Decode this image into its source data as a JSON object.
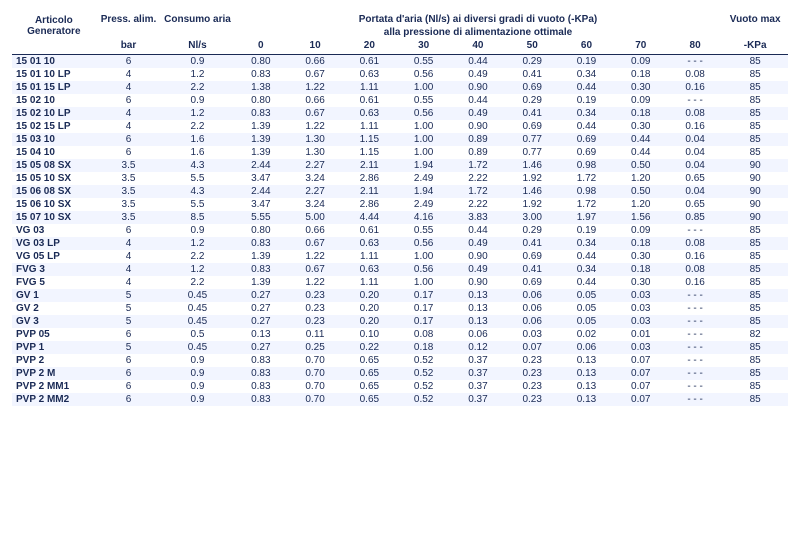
{
  "styling": {
    "text_color": "#1a2a55",
    "row_alt_bg": "#f2f5ff",
    "row_bg": "#ffffff",
    "header_border": "#1a2a55",
    "font_family": "Arial",
    "base_fontsize_pt": 7.5
  },
  "headers": {
    "articolo_l1": "Articolo",
    "articolo_l2": "Generatore",
    "press_l1": "Press. alim.",
    "press_unit": "bar",
    "consumo_l1": "Consumo aria",
    "consumo_unit": "Nl/s",
    "portata_l1": "Portata d'aria (Nl/s) ai diversi gradi di vuoto (-KPa)",
    "portata_l2": "alla pressione di alimentazione ottimale",
    "p0": "0",
    "p10": "10",
    "p20": "20",
    "p30": "30",
    "p40": "40",
    "p50": "50",
    "p60": "60",
    "p70": "70",
    "p80": "80",
    "vuoto_l1": "Vuoto max",
    "vuoto_unit": "-KPa"
  },
  "rows": [
    {
      "art": "15 01 10",
      "press": "6",
      "cons": "0.9",
      "v": [
        "0.80",
        "0.66",
        "0.61",
        "0.55",
        "0.44",
        "0.29",
        "0.19",
        "0.09",
        "- - -"
      ],
      "max": "85"
    },
    {
      "art": "15 01 10 LP",
      "press": "4",
      "cons": "1.2",
      "v": [
        "0.83",
        "0.67",
        "0.63",
        "0.56",
        "0.49",
        "0.41",
        "0.34",
        "0.18",
        "0.08"
      ],
      "max": "85"
    },
    {
      "art": "15 01 15 LP",
      "press": "4",
      "cons": "2.2",
      "v": [
        "1.38",
        "1.22",
        "1.11",
        "1.00",
        "0.90",
        "0.69",
        "0.44",
        "0.30",
        "0.16"
      ],
      "max": "85"
    },
    {
      "art": "15 02 10",
      "press": "6",
      "cons": "0.9",
      "v": [
        "0.80",
        "0.66",
        "0.61",
        "0.55",
        "0.44",
        "0.29",
        "0.19",
        "0.09",
        "- - -"
      ],
      "max": "85"
    },
    {
      "art": "15 02 10 LP",
      "press": "4",
      "cons": "1.2",
      "v": [
        "0.83",
        "0.67",
        "0.63",
        "0.56",
        "0.49",
        "0.41",
        "0.34",
        "0.18",
        "0.08"
      ],
      "max": "85"
    },
    {
      "art": "15 02 15 LP",
      "press": "4",
      "cons": "2.2",
      "v": [
        "1.39",
        "1.22",
        "1.11",
        "1.00",
        "0.90",
        "0.69",
        "0.44",
        "0.30",
        "0.16"
      ],
      "max": "85"
    },
    {
      "art": "15 03 10",
      "press": "6",
      "cons": "1.6",
      "v": [
        "1.39",
        "1.30",
        "1.15",
        "1.00",
        "0.89",
        "0.77",
        "0.69",
        "0.44",
        "0.04"
      ],
      "max": "85"
    },
    {
      "art": "15 04 10",
      "press": "6",
      "cons": "1.6",
      "v": [
        "1.39",
        "1.30",
        "1.15",
        "1.00",
        "0.89",
        "0.77",
        "0.69",
        "0.44",
        "0.04"
      ],
      "max": "85"
    },
    {
      "art": "15 05 08 SX",
      "press": "3.5",
      "cons": "4.3",
      "v": [
        "2.44",
        "2.27",
        "2.11",
        "1.94",
        "1.72",
        "1.46",
        "0.98",
        "0.50",
        "0.04"
      ],
      "max": "90"
    },
    {
      "art": "15 05 10 SX",
      "press": "3.5",
      "cons": "5.5",
      "v": [
        "3.47",
        "3.24",
        "2.86",
        "2.49",
        "2.22",
        "1.92",
        "1.72",
        "1.20",
        "0.65"
      ],
      "max": "90"
    },
    {
      "art": "15 06 08 SX",
      "press": "3.5",
      "cons": "4.3",
      "v": [
        "2.44",
        "2.27",
        "2.11",
        "1.94",
        "1.72",
        "1.46",
        "0.98",
        "0.50",
        "0.04"
      ],
      "max": "90"
    },
    {
      "art": "15 06 10 SX",
      "press": "3.5",
      "cons": "5.5",
      "v": [
        "3.47",
        "3.24",
        "2.86",
        "2.49",
        "2.22",
        "1.92",
        "1.72",
        "1.20",
        "0.65"
      ],
      "max": "90"
    },
    {
      "art": "15 07 10 SX",
      "press": "3.5",
      "cons": "8.5",
      "v": [
        "5.55",
        "5.00",
        "4.44",
        "4.16",
        "3.83",
        "3.00",
        "1.97",
        "1.56",
        "0.85"
      ],
      "max": "90"
    },
    {
      "art": "VG 03",
      "press": "6",
      "cons": "0.9",
      "v": [
        "0.80",
        "0.66",
        "0.61",
        "0.55",
        "0.44",
        "0.29",
        "0.19",
        "0.09",
        "- - -"
      ],
      "max": "85"
    },
    {
      "art": "VG 03 LP",
      "press": "4",
      "cons": "1.2",
      "v": [
        "0.83",
        "0.67",
        "0.63",
        "0.56",
        "0.49",
        "0.41",
        "0.34",
        "0.18",
        "0.08"
      ],
      "max": "85"
    },
    {
      "art": "VG 05 LP",
      "press": "4",
      "cons": "2.2",
      "v": [
        "1.39",
        "1.22",
        "1.11",
        "1.00",
        "0.90",
        "0.69",
        "0.44",
        "0.30",
        "0.16"
      ],
      "max": "85"
    },
    {
      "art": "FVG 3",
      "press": "4",
      "cons": "1.2",
      "v": [
        "0.83",
        "0.67",
        "0.63",
        "0.56",
        "0.49",
        "0.41",
        "0.34",
        "0.18",
        "0.08"
      ],
      "max": "85"
    },
    {
      "art": "FVG 5",
      "press": "4",
      "cons": "2.2",
      "v": [
        "1.39",
        "1.22",
        "1.11",
        "1.00",
        "0.90",
        "0.69",
        "0.44",
        "0.30",
        "0.16"
      ],
      "max": "85"
    },
    {
      "art": "GV 1",
      "press": "5",
      "cons": "0.45",
      "v": [
        "0.27",
        "0.23",
        "0.20",
        "0.17",
        "0.13",
        "0.06",
        "0.05",
        "0.03",
        "- - -"
      ],
      "max": "85"
    },
    {
      "art": "GV 2",
      "press": "5",
      "cons": "0.45",
      "v": [
        "0.27",
        "0.23",
        "0.20",
        "0.17",
        "0.13",
        "0.06",
        "0.05",
        "0.03",
        "- - -"
      ],
      "max": "85"
    },
    {
      "art": "GV 3",
      "press": "5",
      "cons": "0.45",
      "v": [
        "0.27",
        "0.23",
        "0.20",
        "0.17",
        "0.13",
        "0.06",
        "0.05",
        "0.03",
        "- - -"
      ],
      "max": "85"
    },
    {
      "art": "PVP 05",
      "press": "6",
      "cons": "0.5",
      "v": [
        "0.13",
        "0.11",
        "0.10",
        "0.08",
        "0.06",
        "0.03",
        "0.02",
        "0.01",
        "- - -"
      ],
      "max": "82"
    },
    {
      "art": "PVP 1",
      "press": "5",
      "cons": "0.45",
      "v": [
        "0.27",
        "0.25",
        "0.22",
        "0.18",
        "0.12",
        "0.07",
        "0.06",
        "0.03",
        "- - -"
      ],
      "max": "85"
    },
    {
      "art": "PVP 2",
      "press": "6",
      "cons": "0.9",
      "v": [
        "0.83",
        "0.70",
        "0.65",
        "0.52",
        "0.37",
        "0.23",
        "0.13",
        "0.07",
        "- - -"
      ],
      "max": "85"
    },
    {
      "art": "PVP 2 M",
      "press": "6",
      "cons": "0.9",
      "v": [
        "0.83",
        "0.70",
        "0.65",
        "0.52",
        "0.37",
        "0.23",
        "0.13",
        "0.07",
        "- - -"
      ],
      "max": "85"
    },
    {
      "art": "PVP 2 MM1",
      "press": "6",
      "cons": "0.9",
      "v": [
        "0.83",
        "0.70",
        "0.65",
        "0.52",
        "0.37",
        "0.23",
        "0.13",
        "0.07",
        "- - -"
      ],
      "max": "85"
    },
    {
      "art": "PVP 2 MM2",
      "press": "6",
      "cons": "0.9",
      "v": [
        "0.83",
        "0.70",
        "0.65",
        "0.52",
        "0.37",
        "0.23",
        "0.13",
        "0.07",
        "- - -"
      ],
      "max": "85"
    }
  ]
}
